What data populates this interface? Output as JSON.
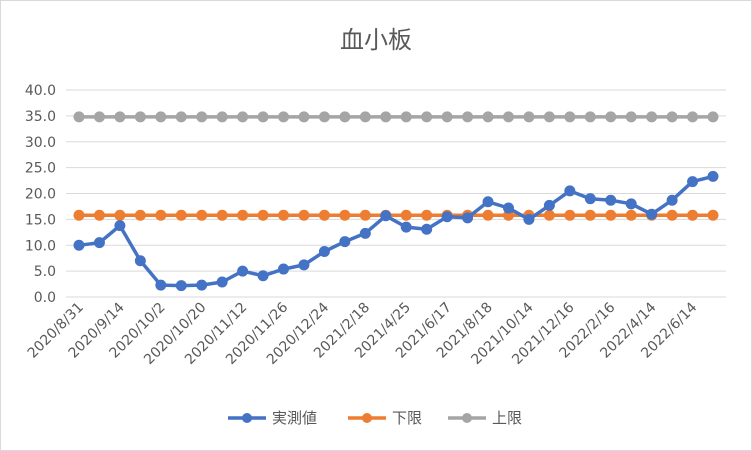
{
  "chart_data": {
    "type": "line",
    "title": "血小板",
    "xlabel": "",
    "ylabel": "",
    "ylim": [
      0,
      40
    ],
    "yticks": [
      "0.0",
      "5.0",
      "10.0",
      "15.0",
      "20.0",
      "25.0",
      "30.0",
      "35.0",
      "40.0"
    ],
    "grid": true,
    "legend_position": "bottom",
    "x_tick_labels": [
      "2020/8/31",
      "2020/9/14",
      "2020/10/2",
      "2020/10/20",
      "2020/11/12",
      "2020/11/26",
      "2020/12/24",
      "2021/2/18",
      "2021/4/25",
      "2021/6/17",
      "2021/8/18",
      "2021/10/14",
      "2021/12/16",
      "2022/2/16",
      "2022/4/14",
      "2022/6/14"
    ],
    "series": [
      {
        "name": "実測値",
        "color": "#4472c4",
        "values": [
          10.0,
          10.5,
          13.8,
          7.0,
          2.3,
          2.2,
          2.3,
          2.9,
          5.0,
          4.1,
          5.4,
          6.2,
          8.8,
          10.7,
          12.3,
          15.7,
          13.5,
          13.1,
          15.5,
          15.3,
          18.4,
          17.2,
          15.0,
          17.7,
          20.5,
          19.0,
          18.7,
          18.0,
          16.0,
          18.7,
          22.3,
          23.3
        ]
      },
      {
        "name": "下限",
        "color": "#ed7d31",
        "values": [
          15.8,
          15.8,
          15.8,
          15.8,
          15.8,
          15.8,
          15.8,
          15.8,
          15.8,
          15.8,
          15.8,
          15.8,
          15.8,
          15.8,
          15.8,
          15.8,
          15.8,
          15.8,
          15.8,
          15.8,
          15.8,
          15.8,
          15.8,
          15.8,
          15.8,
          15.8,
          15.8,
          15.8,
          15.8,
          15.8,
          15.8,
          15.8
        ]
      },
      {
        "name": "上限",
        "color": "#a5a5a5",
        "values": [
          34.8,
          34.8,
          34.8,
          34.8,
          34.8,
          34.8,
          34.8,
          34.8,
          34.8,
          34.8,
          34.8,
          34.8,
          34.8,
          34.8,
          34.8,
          34.8,
          34.8,
          34.8,
          34.8,
          34.8,
          34.8,
          34.8,
          34.8,
          34.8,
          34.8,
          34.8,
          34.8,
          34.8,
          34.8,
          34.8,
          34.8,
          34.8
        ]
      }
    ]
  }
}
